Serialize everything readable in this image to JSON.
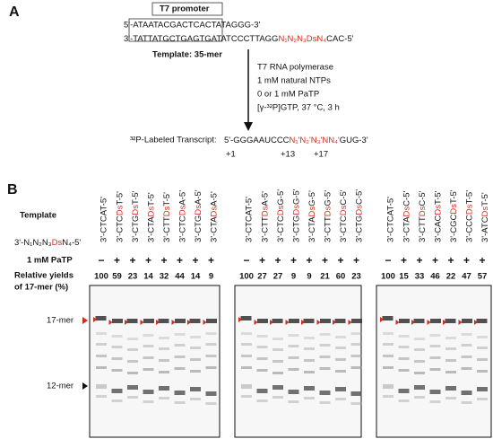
{
  "panel_a": {
    "label": "A",
    "promoter": "T7 promoter",
    "top_strand": "5'-ATAATACGACTCACTATAGGG-3'",
    "bottom_strand": [
      "3'-TATTATGCTGAGTGATATCCCTTAGG",
      "N₁N₂N₃DsN₄",
      "CAC-5'"
    ],
    "template": "Template: 35-mer",
    "conditions": [
      "T7 RNA polymerase",
      "1 mM natural NTPs",
      "0 or 1 mM PaTP",
      "[γ-³²P]GTP, 37 °C, 3 h"
    ],
    "transcript_label": "³²P-Labeled Transcript:",
    "transcript": [
      "5'-GGGAAUCCC",
      "N₁'N₂'N₃'NN₄'",
      "GUG-3'"
    ],
    "positions": [
      "+1",
      "+13",
      "+17"
    ]
  },
  "panel_b": {
    "label": "B",
    "template_label": "Template",
    "template_generic": "3'-N₁N₂N₃DsN₄-5'",
    "patp_label": "1 mM PaTP",
    "yield_label": [
      "Relative yields",
      "of 17-mer (%)"
    ],
    "band_labels": [
      "17-mer",
      "12-mer"
    ],
    "gels": [
      {
        "templates": [
          "3'-CTCAT-5'",
          "3'-CTCDsT-5'",
          "3'-CTGDsT-5'",
          "3'-CTADsT-5'",
          "3'-CTTDsT-5'",
          "3'-CTCDsA-5'",
          "3'-CTGDsA-5'",
          "3'-CTADsA-5'"
        ],
        "patp": [
          "−",
          "+",
          "+",
          "+",
          "+",
          "+",
          "+",
          "+"
        ],
        "yields": [
          100,
          59,
          23,
          14,
          32,
          44,
          14,
          9
        ]
      },
      {
        "templates": [
          "3'-CTCAT-5'",
          "3'-CTTDsA-5'",
          "3'-CTCDsG-5'",
          "3'-CTGDsG-5'",
          "3'-CTADsG-5'",
          "3'-CTTDsG-5'",
          "3'-CTCDsC-5'",
          "3'-CTGDsC-5'"
        ],
        "patp": [
          "−",
          "+",
          "+",
          "+",
          "+",
          "+",
          "+",
          "+"
        ],
        "yields": [
          100,
          27,
          27,
          9,
          9,
          21,
          60,
          23
        ]
      },
      {
        "templates": [
          "3'-CTCAT-5'",
          "3'-CTADsC-5'",
          "3'-CTTDsC-5'",
          "3'-CACDsT-5'",
          "3'-CGCDsT-5'",
          "3'-CCCDsT-5'",
          "3'-ATCDsT-5'"
        ],
        "patp": [
          "−",
          "+",
          "+",
          "+",
          "+",
          "+",
          "+"
        ],
        "yields": [
          100,
          15,
          33,
          46,
          22,
          47,
          57
        ]
      }
    ]
  }
}
